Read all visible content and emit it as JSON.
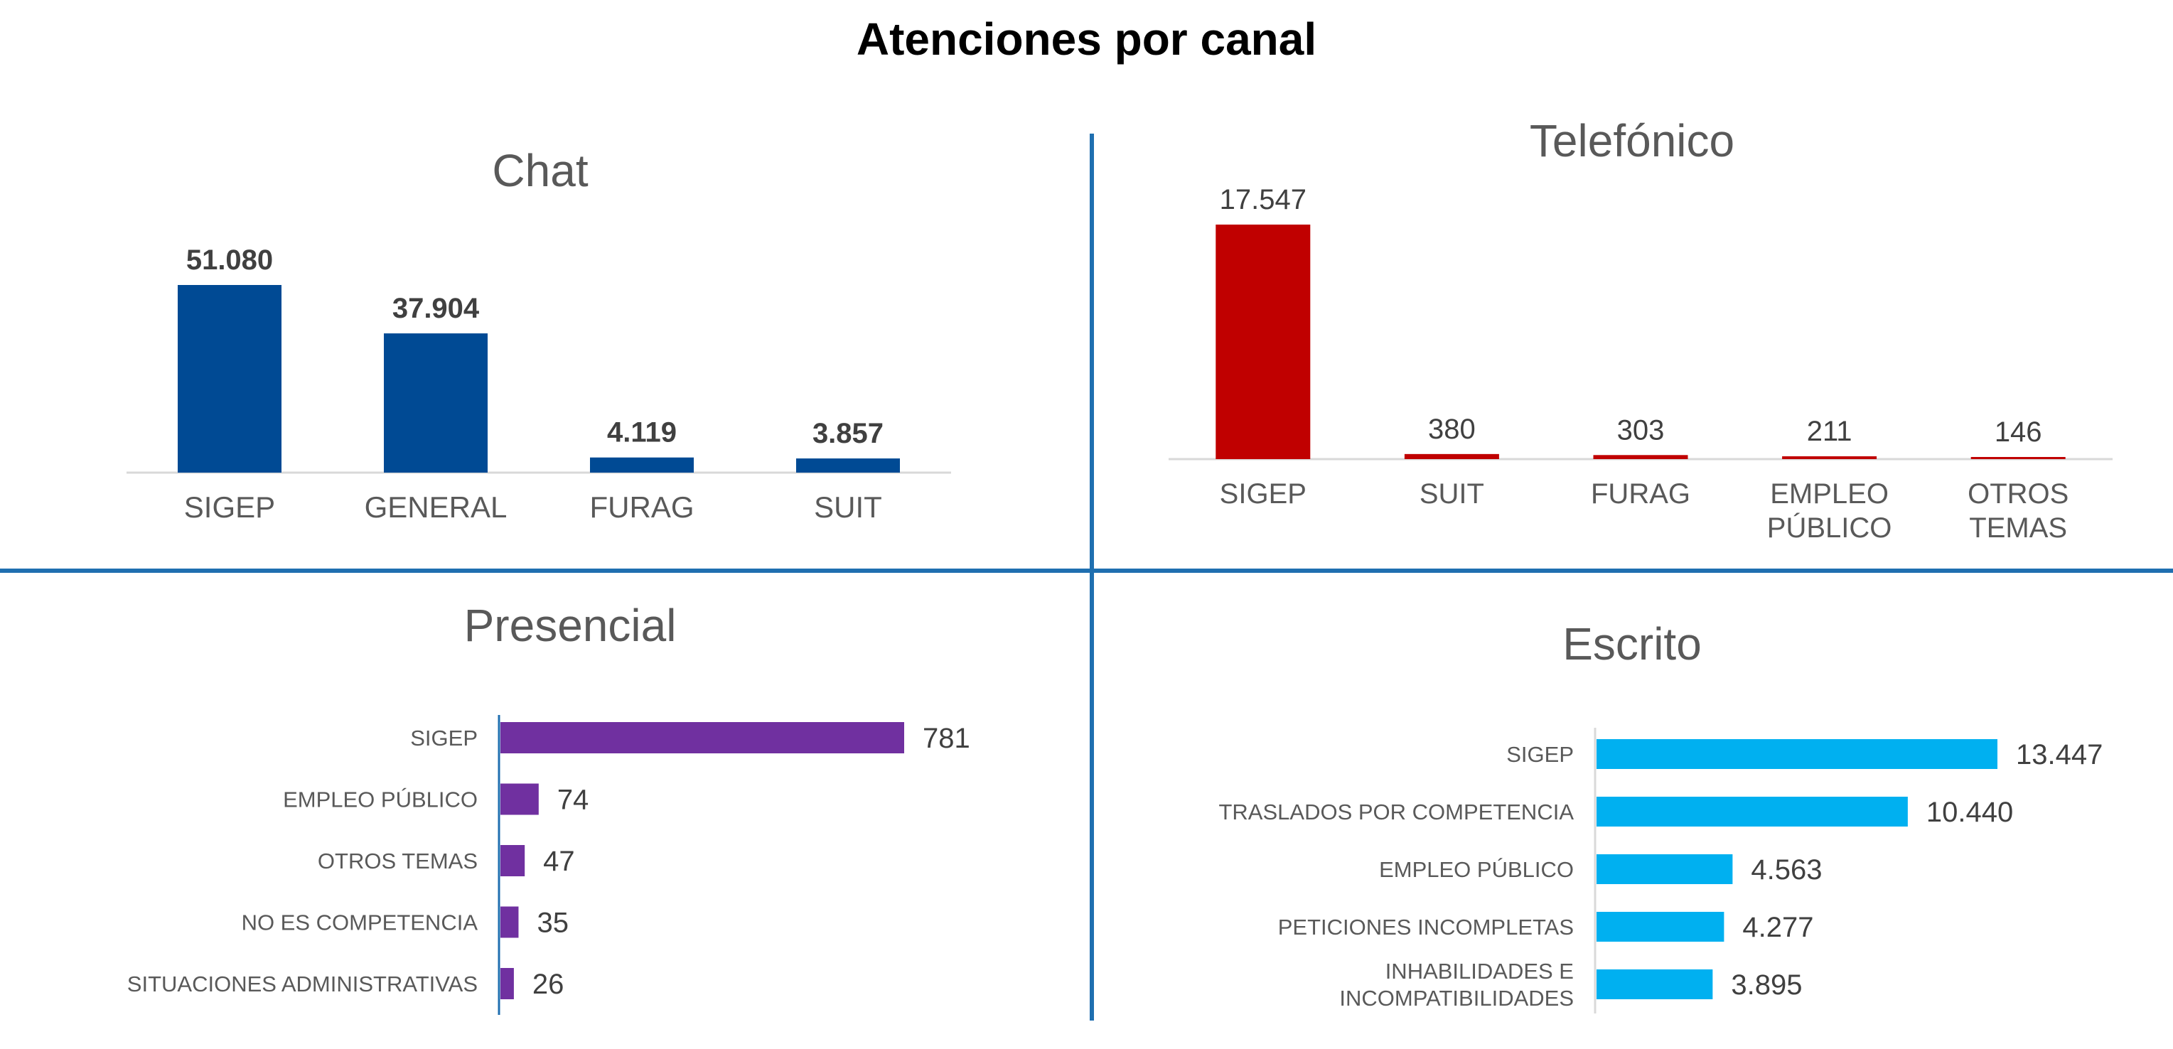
{
  "page": {
    "title": "Atenciones por canal",
    "divider_color": "#1F6FB0"
  },
  "chart_data": [
    {
      "type": "bar",
      "title": "Chat",
      "categories": [
        "SIGEP",
        "GENERAL",
        "FURAG",
        "SUIT"
      ],
      "values": [
        51080,
        37904,
        4119,
        3857
      ],
      "value_labels": [
        "51.080",
        "37.904",
        "4.119",
        "3.857"
      ],
      "color": "#004A94",
      "ylim": [
        0,
        60000
      ],
      "grid": false,
      "legend": "none"
    },
    {
      "type": "bar",
      "title": "Telefónico",
      "categories": [
        "SIGEP",
        "SUIT",
        "FURAG",
        "EMPLEO PÚBLICO",
        "OTROS TEMAS"
      ],
      "values": [
        17547,
        380,
        303,
        211,
        146
      ],
      "value_labels": [
        "17.547",
        "380",
        "303",
        "211",
        "146"
      ],
      "color": "#C00000",
      "ylim": [
        0,
        20000
      ],
      "grid": false,
      "legend": "none"
    },
    {
      "type": "bar",
      "orientation": "horizontal",
      "title": "Presencial",
      "categories": [
        "SIGEP",
        "EMPLEO PÚBLICO",
        "OTROS TEMAS",
        "NO ES COMPETENCIA",
        "SITUACIONES ADMINISTRATIVAS"
      ],
      "values": [
        781,
        74,
        47,
        35,
        26
      ],
      "value_labels": [
        "781",
        "74",
        "47",
        "35",
        "26"
      ],
      "color": "#7030A0",
      "xlim": [
        0,
        781
      ],
      "grid": false,
      "legend": "none"
    },
    {
      "type": "bar",
      "orientation": "horizontal",
      "title": "Escrito",
      "categories": [
        "SIGEP",
        "TRASLADOS POR COMPETENCIA",
        "EMPLEO PÚBLICO",
        "PETICIONES INCOMPLETAS",
        "INHABILIDADES E INCOMPATIBILIDADES"
      ],
      "values": [
        13447,
        10440,
        4563,
        4277,
        3895
      ],
      "value_labels": [
        "13.447",
        "10.440",
        "4.563",
        "4.277",
        "3.895"
      ],
      "color": "#00B0F0",
      "xlim": [
        0,
        13447
      ],
      "grid": false,
      "legend": "none"
    }
  ]
}
